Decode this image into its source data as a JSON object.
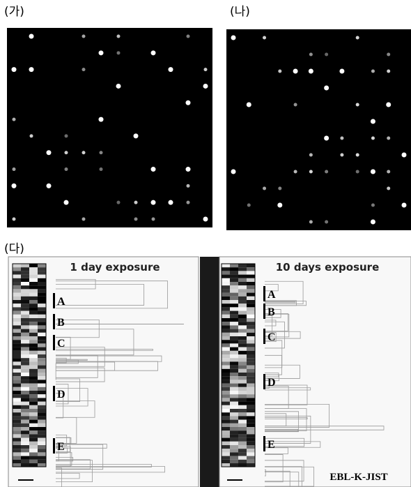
{
  "panels": [
    {
      "label": "(가)"
    },
    {
      "label": "(나)"
    },
    {
      "label": "(다)",
      "left_title": "1 day exposure",
      "right_title": "10 days exposure",
      "left_clusters": [
        "A",
        "B",
        "C",
        "D",
        "E"
      ],
      "right_clusters": [
        "A",
        "B",
        "C",
        "D",
        "E"
      ],
      "watermark": "EBL-K-JIST"
    }
  ]
}
